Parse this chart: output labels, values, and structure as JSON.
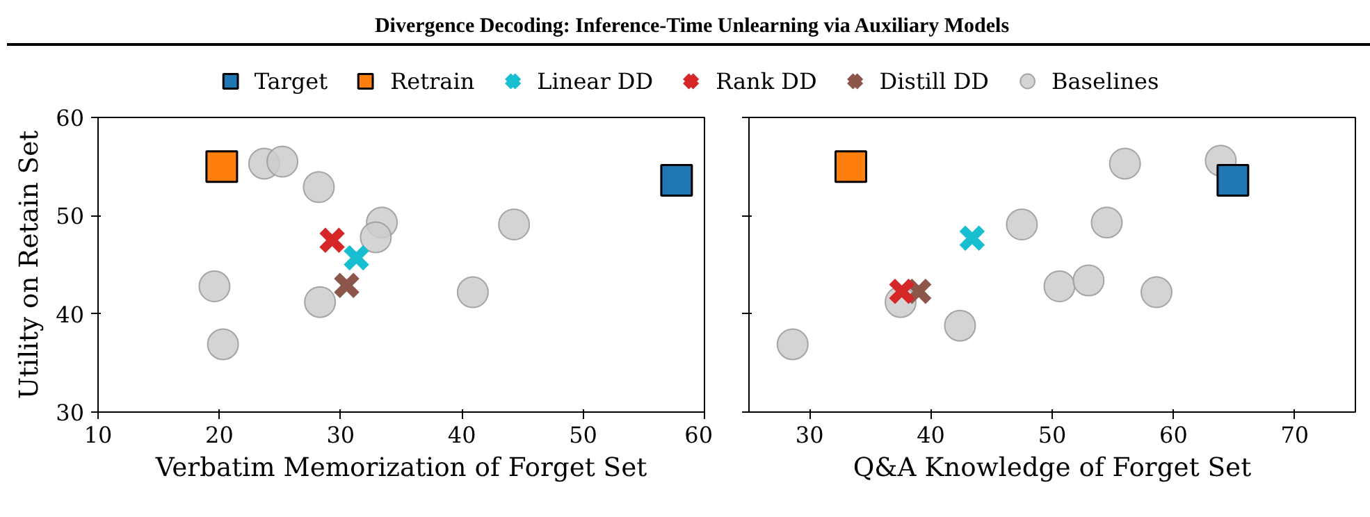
{
  "chart_data": [
    {
      "type": "scatter",
      "title": "Divergence Decoding: Inference-Time Unlearning via Auxiliary Models",
      "xlabel": "Verbatim Memorization of Forget Set",
      "ylabel": "Utility on Retain Set",
      "xlim": [
        10,
        60
      ],
      "xticks": [
        10,
        20,
        30,
        40,
        50,
        60
      ],
      "ylim": [
        30,
        60
      ],
      "yticks": [
        30,
        40,
        50,
        60
      ],
      "grid": false,
      "legend": "top",
      "series": [
        {
          "name": "Target",
          "color": "#1f77b4",
          "marker": "square",
          "x": [
            57.7
          ],
          "values": [
            53.6
          ]
        },
        {
          "name": "Retrain",
          "color": "#ff7f0e",
          "marker": "square",
          "x": [
            20.2
          ],
          "values": [
            55.0
          ]
        },
        {
          "name": "Linear DD",
          "color": "#17becf",
          "marker": "cross",
          "x": [
            31.3
          ],
          "values": [
            45.7
          ]
        },
        {
          "name": "Rank DD",
          "color": "#d62728",
          "marker": "cross",
          "x": [
            29.3
          ],
          "values": [
            47.5
          ]
        },
        {
          "name": "Distill DD",
          "color": "#8c564b",
          "marker": "cross",
          "x": [
            30.5
          ],
          "values": [
            42.9
          ]
        },
        {
          "name": "Baselines",
          "color": "#cccccc",
          "marker": "circle",
          "x": [
            23.7,
            25.2,
            28.2,
            33.4,
            32.9,
            44.3,
            19.6,
            40.9,
            28.3,
            20.3
          ],
          "values": [
            55.3,
            55.5,
            52.9,
            49.3,
            47.8,
            49.1,
            42.8,
            42.2,
            41.2,
            36.9
          ]
        }
      ]
    },
    {
      "type": "scatter",
      "xlabel": "Q&A Knowledge of Forget Set",
      "xlim": [
        25,
        75
      ],
      "xticks": [
        30,
        40,
        50,
        60,
        70
      ],
      "ylim": [
        30,
        60
      ],
      "yticks": [
        30,
        40,
        50,
        60
      ],
      "grid": false,
      "tick_labels": "x",
      "series": [
        {
          "color": "#1f77b4",
          "marker": "square",
          "x": [
            64.9
          ],
          "values": [
            53.6
          ]
        },
        {
          "color": "#ff7f0e",
          "marker": "square",
          "x": [
            33.4
          ],
          "values": [
            55.0
          ]
        },
        {
          "color": "#17becf",
          "marker": "cross",
          "x": [
            43.4
          ],
          "values": [
            47.7
          ]
        },
        {
          "color": "#d62728",
          "marker": "cross",
          "x": [
            37.6
          ],
          "values": [
            42.3
          ]
        },
        {
          "color": "#8c564b",
          "marker": "cross",
          "x": [
            39.0
          ],
          "values": [
            42.3
          ]
        },
        {
          "color": "#cccccc",
          "marker": "circle",
          "x": [
            56.0,
            63.9,
            47.5,
            54.5,
            50.6,
            53.0,
            58.6,
            37.5,
            42.4,
            28.6
          ],
          "values": [
            55.3,
            55.6,
            49.1,
            49.3,
            42.8,
            43.4,
            42.2,
            41.2,
            38.8,
            36.9
          ]
        }
      ]
    }
  ]
}
